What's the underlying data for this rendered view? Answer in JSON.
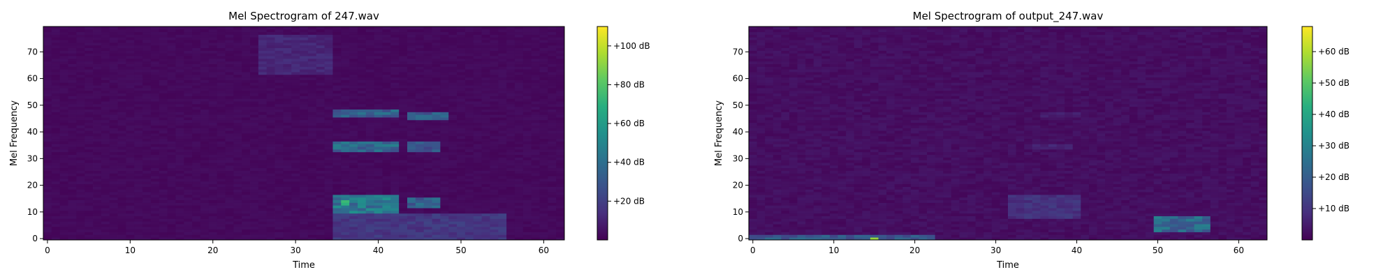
{
  "chart_data": [
    {
      "type": "heatmap",
      "title": "Mel Spectrogram of 247.wav",
      "xlabel": "Time",
      "ylabel": "Mel Frequency",
      "xlim": [
        -0.5,
        62.5
      ],
      "ylim": [
        -0.5,
        79.5
      ],
      "x_ticks": [
        0,
        10,
        20,
        30,
        40,
        50,
        60
      ],
      "y_ticks": [
        0,
        10,
        20,
        30,
        40,
        50,
        60,
        70
      ],
      "colormap": "viridis",
      "colorbar": {
        "ticks": [
          20,
          40,
          60,
          80,
          100
        ],
        "tick_labels": [
          "+20 dB",
          "+40 dB",
          "+60 dB",
          "+80 dB",
          "+100 dB"
        ],
        "range": [
          0,
          110
        ]
      },
      "grid": false,
      "frames": 63,
      "mel_bins": 80,
      "features": [
        {
          "time": [
            36,
            36
          ],
          "mel": [
            13,
            14
          ],
          "value_db": 110
        },
        {
          "time": [
            35,
            42
          ],
          "mel": [
            10,
            16
          ],
          "value_db": 55
        },
        {
          "time": [
            44,
            47
          ],
          "mel": [
            12,
            15
          ],
          "value_db": 45
        },
        {
          "time": [
            35,
            42
          ],
          "mel": [
            33,
            36
          ],
          "value_db": 48
        },
        {
          "time": [
            44,
            47
          ],
          "mel": [
            33,
            36
          ],
          "value_db": 38
        },
        {
          "time": [
            35,
            42
          ],
          "mel": [
            46,
            48
          ],
          "value_db": 45
        },
        {
          "time": [
            44,
            48
          ],
          "mel": [
            45,
            47
          ],
          "value_db": 40
        },
        {
          "time": [
            26,
            34
          ],
          "mel": [
            62,
            76
          ],
          "value_db": 15
        },
        {
          "time": [
            35,
            55
          ],
          "mel": [
            0,
            9
          ],
          "value_db": 22
        }
      ]
    },
    {
      "type": "heatmap",
      "title": "Mel Spectrogram of output_247.wav",
      "xlabel": "Time",
      "ylabel": "Mel Frequency",
      "xlim": [
        -0.5,
        63.5
      ],
      "ylim": [
        -0.5,
        79.5
      ],
      "x_ticks": [
        0,
        10,
        20,
        30,
        40,
        50,
        60
      ],
      "y_ticks": [
        0,
        10,
        20,
        30,
        40,
        50,
        60,
        70
      ],
      "colormap": "viridis",
      "colorbar": {
        "ticks": [
          10,
          20,
          30,
          40,
          50,
          60
        ],
        "tick_labels": [
          "+10 dB",
          "+20 dB",
          "+30 dB",
          "+40 dB",
          "+50 dB",
          "+60 dB"
        ],
        "range": [
          0,
          68
        ]
      },
      "grid": false,
      "frames": 64,
      "mel_bins": 80,
      "features": [
        {
          "time": [
            15,
            15
          ],
          "mel": [
            0,
            0
          ],
          "value_db": 68
        },
        {
          "time": [
            0,
            22
          ],
          "mel": [
            0,
            1
          ],
          "value_db": 25
        },
        {
          "time": [
            50,
            56
          ],
          "mel": [
            3,
            8
          ],
          "value_db": 30
        },
        {
          "time": [
            32,
            40
          ],
          "mel": [
            8,
            16
          ],
          "value_db": 12
        },
        {
          "time": [
            35,
            39
          ],
          "mel": [
            34,
            35
          ],
          "value_db": 9
        },
        {
          "time": [
            36,
            40
          ],
          "mel": [
            46,
            47
          ],
          "value_db": 7
        }
      ]
    }
  ]
}
